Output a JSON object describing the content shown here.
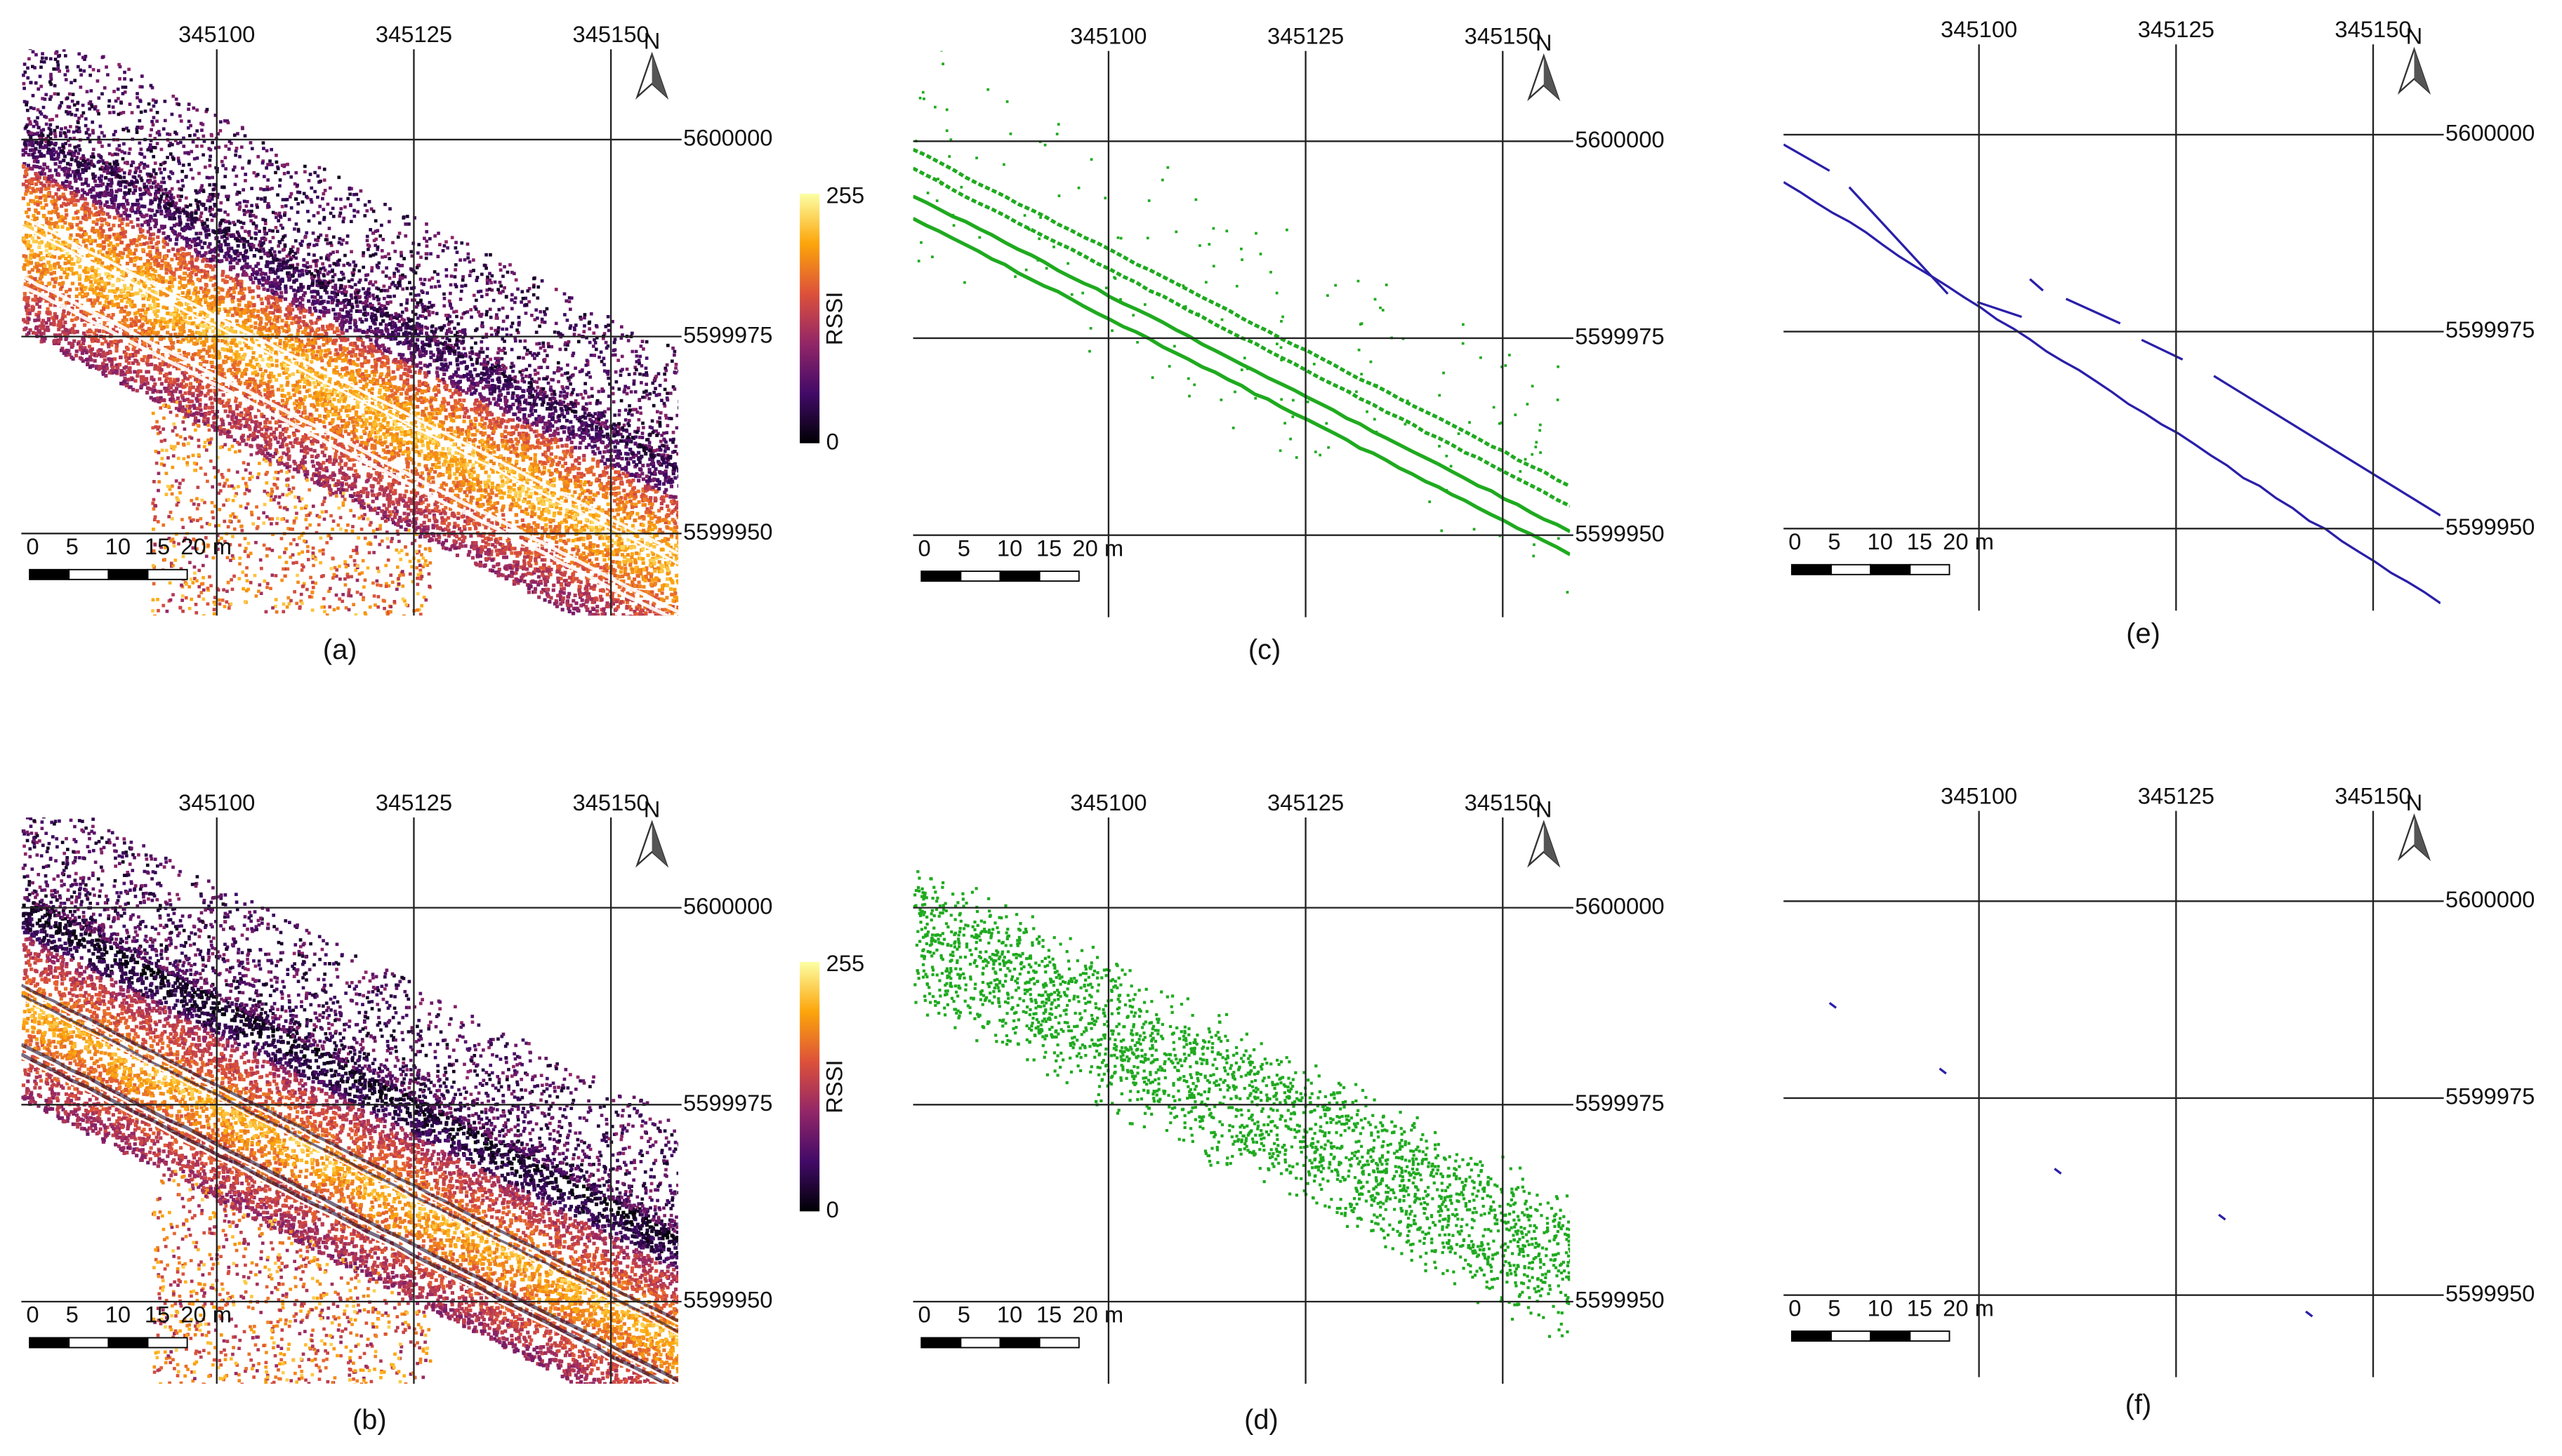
{
  "panels": [
    {
      "caption": "(a)",
      "x_labels": [
        345100,
        345125,
        345150
      ],
      "y_labels": [
        5600000,
        5599975,
        5599950
      ],
      "scale_labels": [
        0,
        5,
        10,
        15,
        "20 m"
      ],
      "north": "N",
      "colorbar": {
        "max": 255,
        "min": 0,
        "label": "RSSI"
      }
    },
    {
      "caption": "(b)",
      "x_labels": [
        345100,
        345125,
        345150
      ],
      "y_labels": [
        5600000,
        5599975,
        5599950
      ],
      "scale_labels": [
        0,
        5,
        10,
        15,
        "20 m"
      ],
      "north": "N",
      "colorbar": {
        "max": 255,
        "min": 0,
        "label": "RSSI"
      }
    },
    {
      "caption": "(c)",
      "x_labels": [
        345100,
        345125,
        345150
      ],
      "y_labels": [
        5600000,
        5599975,
        5599950
      ],
      "scale_labels": [
        0,
        5,
        10,
        15,
        "20 m"
      ],
      "north": "N"
    },
    {
      "caption": "(d)",
      "x_labels": [
        345100,
        345125,
        345150
      ],
      "y_labels": [
        5600000,
        5599975,
        5599950
      ],
      "scale_labels": [
        0,
        5,
        10,
        15,
        "20 m"
      ],
      "north": "N"
    },
    {
      "caption": "(e)",
      "x_labels": [
        345100,
        345125,
        345150
      ],
      "y_labels": [
        5600000,
        5599975,
        5599950
      ],
      "scale_labels": [
        0,
        5,
        10,
        15,
        "20 m"
      ],
      "north": "N"
    },
    {
      "caption": "(f)",
      "x_labels": [
        345100,
        345125,
        345150
      ],
      "y_labels": [
        5600000,
        5599975,
        5599950
      ],
      "scale_labels": [
        0,
        5,
        10,
        15,
        "20 m"
      ],
      "north": "N"
    }
  ]
}
